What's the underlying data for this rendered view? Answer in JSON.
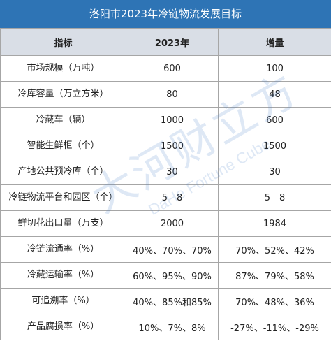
{
  "title": "洛阳市2023年冷链物流发展目标",
  "headers": {
    "indicator": "指标",
    "year": "2023年",
    "increment": "增量"
  },
  "rows": [
    {
      "indicator": "市场规模（万吨）",
      "year": "600",
      "increment": "100"
    },
    {
      "indicator": "冷库容量（万立方米）",
      "year": "80",
      "increment": "48"
    },
    {
      "indicator": "冷藏车（辆）",
      "year": "1000",
      "increment": "600"
    },
    {
      "indicator": "智能生鲜柜（个）",
      "year": "1500",
      "increment": "1500"
    },
    {
      "indicator": "产地公共预冷库（个）",
      "year": "30",
      "increment": "30"
    },
    {
      "indicator": "冷链物流平台和园区（个）",
      "year": "5—8",
      "increment": "5—8"
    },
    {
      "indicator": "鲜切花出口量（万支）",
      "year": "2000",
      "increment": "1984"
    },
    {
      "indicator": "冷链流通率（%）",
      "year": "40%、70%、70%",
      "increment": "70%、52%、42%"
    },
    {
      "indicator": "冷藏运输率（%）",
      "year": "60%、95%、90%",
      "increment": "87%、79%、58%"
    },
    {
      "indicator": "可追溯率（%）",
      "year": "40%、85%和85%",
      "increment": "70%、48%、36%"
    },
    {
      "indicator": "产品腐损率（%）",
      "year": "10%、7%、8%",
      "increment": "-27%、-11%、-29%"
    }
  ],
  "watermark": {
    "main": "大河财立方",
    "sub": "DaHe Fortune Cube"
  },
  "colors": {
    "title_bg": "#2e74b5",
    "header_bg": "#d9dee6",
    "border": "#a6a6a6"
  }
}
